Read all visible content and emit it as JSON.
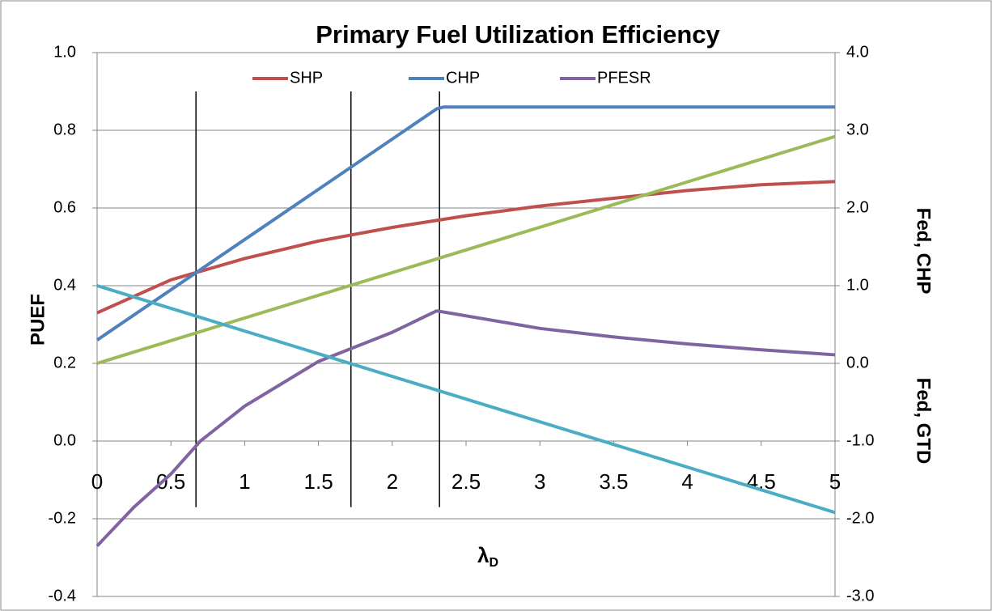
{
  "chart_data": {
    "type": "line",
    "title": "Primary Fuel Utilization Efficiency",
    "ylabel": "PUEF",
    "y2labels": [
      "Fed, CHP",
      "Fed, GTD"
    ],
    "xlabel": {
      "main": "λ",
      "sub": "D"
    },
    "xlim": [
      0,
      5
    ],
    "xticks": [
      0,
      0.5,
      1,
      1.5,
      2,
      2.5,
      3,
      3.5,
      4,
      4.5,
      5
    ],
    "ylim": [
      -0.4,
      1.0
    ],
    "yticks": [
      {
        "value": -0.4,
        "label": "-0.4"
      },
      {
        "value": -0.2,
        "label": "-0.2"
      },
      {
        "value": 0,
        "label": "0.0"
      },
      0.2,
      0.4,
      0.6,
      0.8,
      {
        "value": 1,
        "label": "1.0"
      }
    ],
    "y2lim": [
      -3,
      4
    ],
    "y2ticks": [
      {
        "value": -3,
        "label": "-3.0"
      },
      {
        "value": -2,
        "label": "-2.0"
      },
      {
        "value": -1,
        "label": "-1.0"
      },
      {
        "value": 0,
        "label": "0.0"
      },
      {
        "value": 1,
        "label": "1.0"
      },
      {
        "value": 2,
        "label": "2.0"
      },
      {
        "value": 3,
        "label": "3.0"
      },
      {
        "value": 4,
        "label": "4.0"
      }
    ],
    "grid": true,
    "legend": "top",
    "series": [
      {
        "name": "SHP",
        "color": "#c0504d",
        "x": [
          0,
          0.5,
          1,
          1.5,
          2,
          2.5,
          3,
          3.5,
          4,
          4.5,
          5
        ],
        "values": [
          0.33,
          0.415,
          0.47,
          0.515,
          0.55,
          0.58,
          0.605,
          0.625,
          0.645,
          0.66,
          0.668
        ]
      },
      {
        "name": "CHP",
        "color": "#4f81bd",
        "x": [
          0,
          2.3,
          2.35,
          5
        ],
        "values": [
          0.26,
          0.855,
          0.86,
          0.86
        ]
      },
      {
        "name": "PFESR",
        "color": "#8064a2",
        "x": [
          0,
          0.25,
          0.5,
          0.7,
          1,
          1.5,
          2,
          2.3,
          2.35,
          3,
          3.5,
          4,
          4.5,
          5
        ],
        "values": [
          -0.27,
          -0.17,
          -0.085,
          0.0,
          0.09,
          0.205,
          0.28,
          0.335,
          0.332,
          0.29,
          0.268,
          0.25,
          0.235,
          0.222
        ]
      },
      {
        "color": "#9bbb59",
        "axis": "y2",
        "x": [
          0,
          5
        ],
        "values": [
          0,
          2.92
        ]
      },
      {
        "color": "#4bacc6",
        "axis": "y2",
        "x": [
          0,
          5
        ],
        "values": [
          1.0,
          -1.92
        ]
      }
    ],
    "vlines": [
      0.67,
      1.72,
      2.32
    ],
    "vline_range": [
      -0.17,
      0.9
    ]
  }
}
